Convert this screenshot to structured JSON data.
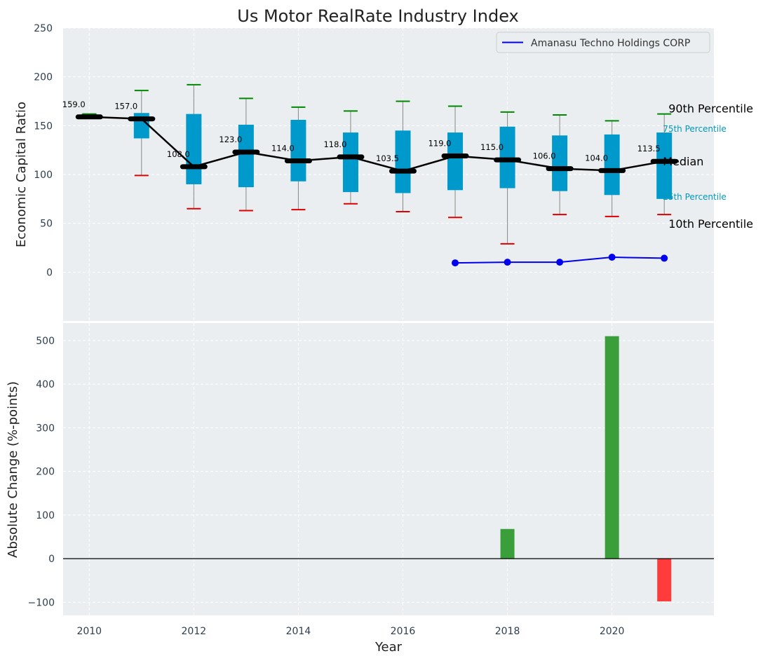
{
  "chart_data": {
    "title": "Us Motor RealRate Industry Index",
    "xlabel": "Year",
    "grid": true,
    "panels": [
      {
        "type": "box-line",
        "ylabel": "Economic Capital Ratio",
        "ylim": [
          -50,
          250
        ],
        "yticks": [
          0,
          50,
          100,
          150,
          200,
          250
        ],
        "legend": {
          "placement": "top-right",
          "entries": [
            "Amanasu Techno Holdings CORP"
          ]
        },
        "years": [
          2010,
          2011,
          2012,
          2013,
          2014,
          2015,
          2016,
          2017,
          2018,
          2019,
          2020,
          2021
        ],
        "median": [
          159.0,
          157.0,
          108.0,
          123.0,
          114.0,
          118.0,
          103.5,
          119.0,
          115.0,
          106.0,
          104.0,
          113.5
        ],
        "median_labels": [
          "159.0",
          "157.0",
          "108.0",
          "123.0",
          "114.0",
          "118.0",
          "103.5",
          "119.0",
          "115.0",
          "106.0",
          "104.0",
          "113.5"
        ],
        "p10": [
          159,
          99,
          65,
          63,
          64,
          70,
          62,
          56,
          29,
          59,
          57,
          59
        ],
        "p25": [
          159,
          137,
          90,
          87,
          93,
          82,
          81,
          84,
          86,
          83,
          79,
          75
        ],
        "p75": [
          162,
          163,
          162,
          151,
          156,
          143,
          145,
          143,
          149,
          140,
          141,
          143
        ],
        "p90": [
          162,
          186,
          192,
          178,
          169,
          165,
          175,
          170,
          164,
          161,
          155,
          162
        ],
        "company": {
          "name": "Amanasu Techno Holdings CORP",
          "years": [
            2017,
            2018,
            2019,
            2020,
            2021
          ],
          "values": [
            9.5,
            10.2,
            10.2,
            15.3,
            14.3
          ]
        },
        "annotations": {
          "p90": "90th Percentile",
          "p75": "75th Percentile",
          "median": "Median",
          "p25": "25th Percentile",
          "p10": "10th Percentile"
        }
      },
      {
        "type": "bar",
        "ylabel": "Absolute Change (%-points)",
        "ylim": [
          -130,
          540
        ],
        "yticks": [
          -100,
          0,
          100,
          200,
          300,
          400,
          500
        ],
        "ytick_labels": [
          "−100",
          "0",
          "100",
          "200",
          "300",
          "400",
          "500"
        ],
        "bars": [
          {
            "year": 2018,
            "value": 68
          },
          {
            "year": 2020,
            "value": 510
          },
          {
            "year": 2021,
            "value": -98
          }
        ]
      }
    ],
    "xlim": [
      2009.5,
      2021.95
    ],
    "xticks": [
      2010,
      2012,
      2014,
      2016,
      2018,
      2020
    ],
    "colors": {
      "background": "#eaeef0",
      "grid": "#ffffff",
      "box": "#0099cc",
      "median_line": "#000000",
      "whisker": "#888888",
      "p90_cap": "#008800",
      "p10_cap": "#dd0000",
      "company": "#0000ee",
      "bar_positive": "#3a9e3a",
      "bar_negative": "#ff3b3b",
      "annotation_quartile": "#0099bb",
      "text": "#333333",
      "tick": "#2c3e50"
    }
  }
}
